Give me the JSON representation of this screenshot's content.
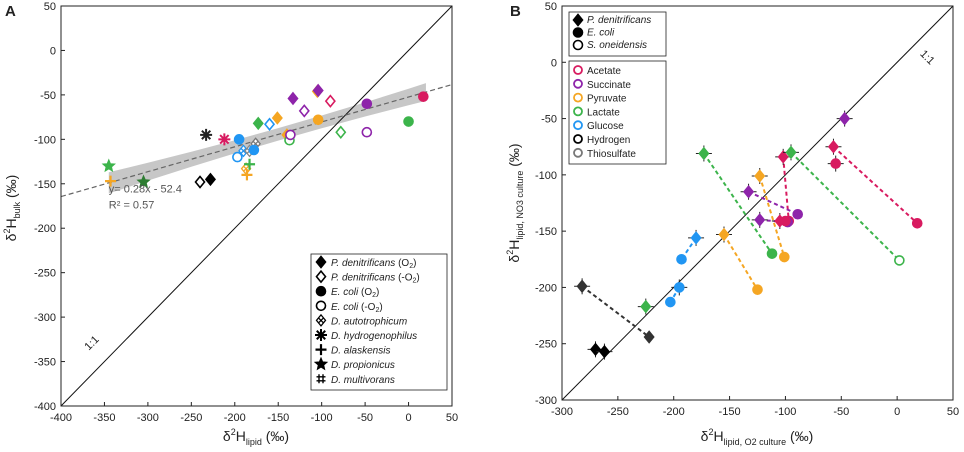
{
  "chart_data": [
    {
      "panel": "A",
      "type": "scatter",
      "xlabel": "δ²H_lipid (‰)",
      "ylabel": "δ²H_bulk (‰)",
      "xlim": [
        -400,
        50
      ],
      "ylim": [
        -400,
        50
      ],
      "x_ticks": [
        -400,
        -350,
        -300,
        -250,
        -200,
        -150,
        -100,
        -50,
        0,
        50
      ],
      "y_ticks": [
        -400,
        -350,
        -300,
        -250,
        -200,
        -150,
        -100,
        -50,
        0,
        50
      ],
      "one_to_one_label": "1:1",
      "regression": {
        "slope": 0.28,
        "intercept": -52.4,
        "equation": "y= 0.28x - 52.4",
        "r2": "R² = 0.57"
      },
      "points": [
        {
          "x": -345,
          "y": -130,
          "species": "D. propionicus",
          "shape": "star",
          "color": "#3cb44b",
          "filled": true
        },
        {
          "x": -343,
          "y": -147,
          "species": "D. alaskensis",
          "shape": "plus",
          "color": "#f5a623",
          "filled": true
        },
        {
          "x": -305,
          "y": -148,
          "species": "D. propionicus",
          "shape": "star",
          "color": "#2e7d32",
          "filled": true
        },
        {
          "x": -240,
          "y": -148,
          "species": "P. denitrificans (-O2)",
          "shape": "diamond",
          "color": "#000000",
          "filled": false
        },
        {
          "x": -228,
          "y": -145,
          "species": "P. denitrificans (O2)",
          "shape": "diamond",
          "color": "#000000",
          "filled": true
        },
        {
          "x": -233,
          "y": -95,
          "species": "D. hydrogenophilus",
          "shape": "asterisk",
          "color": "#222222",
          "filled": true
        },
        {
          "x": -212,
          "y": -100,
          "species": "D. hydrogenophilus",
          "shape": "asterisk",
          "color": "#d81b60",
          "filled": true
        },
        {
          "x": -195,
          "y": -100,
          "species": "E. coli (O2)",
          "shape": "circle",
          "color": "#2196f3",
          "filled": true
        },
        {
          "x": -197,
          "y": -120,
          "species": "E. coli (-O2)",
          "shape": "circle",
          "color": "#2196f3",
          "filled": false
        },
        {
          "x": -190,
          "y": -113,
          "species": "D. autotrophicum",
          "shape": "xdiamond",
          "color": "#2196f3",
          "filled": false
        },
        {
          "x": -183,
          "y": -113,
          "species": "D. autotrophicum",
          "shape": "xdiamond",
          "color": "#888888",
          "filled": false
        },
        {
          "x": -176,
          "y": -105,
          "species": "D. autotrophicum",
          "shape": "xdiamond",
          "color": "#777777",
          "filled": false
        },
        {
          "x": -187,
          "y": -133,
          "species": "D. autotrophicum",
          "shape": "xdiamond",
          "color": "#f5a623",
          "filled": false
        },
        {
          "x": -186,
          "y": -140,
          "species": "D. alaskensis",
          "shape": "plus",
          "color": "#f5a623",
          "filled": true
        },
        {
          "x": -178,
          "y": -112,
          "species": "E. coli (O2)",
          "shape": "circle",
          "color": "#2196f3",
          "filled": true
        },
        {
          "x": -183,
          "y": -128,
          "species": "D. alaskensis",
          "shape": "plus",
          "color": "#3cb44b",
          "filled": true
        },
        {
          "x": -173,
          "y": -82,
          "species": "P. denitrificans (O2)",
          "shape": "diamond",
          "color": "#3cb44b",
          "filled": true
        },
        {
          "x": -160,
          "y": -83,
          "species": "P. denitrificans (-O2)",
          "shape": "diamond",
          "color": "#2196f3",
          "filled": false
        },
        {
          "x": -140,
          "y": -95,
          "species": "P. denitrificans (O2)",
          "shape": "diamond",
          "color": "#f5a623",
          "filled": true
        },
        {
          "x": -137,
          "y": -101,
          "species": "E. coli (-O2)",
          "shape": "circle",
          "color": "#3cb44b",
          "filled": false
        },
        {
          "x": -151,
          "y": -76,
          "species": "P. denitrificans (O2)",
          "shape": "diamond",
          "color": "#f5a623",
          "filled": true
        },
        {
          "x": -136,
          "y": -95,
          "species": "E. coli (-O2)",
          "shape": "circle",
          "color": "#8e24aa",
          "filled": false
        },
        {
          "x": -133,
          "y": -54,
          "species": "P. denitrificans (O2)",
          "shape": "diamond",
          "color": "#8e24aa",
          "filled": true
        },
        {
          "x": -120,
          "y": -68,
          "species": "P. denitrificans (-O2)",
          "shape": "diamond",
          "color": "#8e24aa",
          "filled": false
        },
        {
          "x": -105,
          "y": -46,
          "species": "P. denitrificans (O2)",
          "shape": "diamond",
          "color": "#f5a623",
          "filled": true
        },
        {
          "x": -104,
          "y": -45,
          "species": "P. denitrificans (O2)",
          "shape": "diamond",
          "color": "#8e24aa",
          "filled": true
        },
        {
          "x": -90,
          "y": -57,
          "species": "P. denitrificans (-O2)",
          "shape": "diamond",
          "color": "#d81b60",
          "filled": false
        },
        {
          "x": -104,
          "y": -78,
          "species": "E. coli (O2)",
          "shape": "circle",
          "color": "#f5a623",
          "filled": true
        },
        {
          "x": -78,
          "y": -92,
          "species": "P. denitrificans (-O2)",
          "shape": "diamond",
          "color": "#3cb44b",
          "filled": false
        },
        {
          "x": -48,
          "y": -60,
          "species": "E. coli (O2)",
          "shape": "circle",
          "color": "#8e24aa",
          "filled": true
        },
        {
          "x": -48,
          "y": -92,
          "species": "E. coli (-O2)",
          "shape": "circle",
          "color": "#8e24aa",
          "filled": false
        },
        {
          "x": 0,
          "y": -80,
          "species": "E. coli (O2)",
          "shape": "circle",
          "color": "#3cb44b",
          "filled": true
        },
        {
          "x": 17,
          "y": -52,
          "species": "E. coli (O2)",
          "shape": "circle",
          "color": "#d81b60",
          "filled": true
        }
      ],
      "legend": {
        "position": "bottom-right",
        "items": [
          {
            "shape": "diamond",
            "filled": true,
            "name": "P. denitrificans",
            "suffix": " (O",
            "sub": "2",
            "close": ")"
          },
          {
            "shape": "diamond",
            "filled": false,
            "name": "P. denitrificans",
            "suffix": " (-O",
            "sub": "2",
            "close": ")"
          },
          {
            "shape": "circle",
            "filled": true,
            "name": "E. coli",
            "suffix": " (O",
            "sub": "2",
            "close": ")"
          },
          {
            "shape": "circle",
            "filled": false,
            "name": "E. coli",
            "suffix": " (-O",
            "sub": "2",
            "close": ")"
          },
          {
            "shape": "xdiamond",
            "filled": false,
            "name": "D. autotrophicum",
            "suffix": "",
            "sub": "",
            "close": ""
          },
          {
            "shape": "asterisk",
            "filled": true,
            "name": "D. hydrogenophilus",
            "suffix": "",
            "sub": "",
            "close": ""
          },
          {
            "shape": "plus",
            "filled": true,
            "name": "D. alaskensis",
            "suffix": "",
            "sub": "",
            "close": ""
          },
          {
            "shape": "star",
            "filled": true,
            "name": "D. propionicus",
            "suffix": "",
            "sub": "",
            "close": ""
          },
          {
            "shape": "hash",
            "filled": true,
            "name": "D. multivorans",
            "suffix": "",
            "sub": "",
            "close": ""
          }
        ]
      }
    },
    {
      "panel": "B",
      "type": "scatter",
      "xlabel": "δ²H_lipid, O2 culture (‰)",
      "ylabel": "δ²H_lipid, NO3 culture (‰)",
      "xlim": [
        -300,
        50
      ],
      "ylim": [
        -300,
        50
      ],
      "x_ticks": [
        -300,
        -250,
        -200,
        -150,
        -100,
        -50,
        0,
        50
      ],
      "y_ticks": [
        -300,
        -250,
        -200,
        -150,
        -100,
        -50,
        0,
        50
      ],
      "one_to_one_label": "1:1",
      "pairs": [
        {
          "x": -225,
          "y": -217,
          "shape": "diamond",
          "color": "#3cb44b"
        },
        {
          "x": -173,
          "y": -81,
          "shape": "diamond",
          "x2": -112,
          "y2": -170,
          "shape2": "circle",
          "color": "#3cb44b"
        },
        {
          "x": -155,
          "y": -153,
          "shape": "diamond",
          "x2": -125,
          "y2": -202,
          "shape2": "circle",
          "color": "#f5a623"
        },
        {
          "x": -123,
          "y": -101,
          "shape": "diamond",
          "x2": -101,
          "y2": -173,
          "shape2": "circle",
          "color": "#f5a623"
        },
        {
          "x": -102,
          "y": -84,
          "shape": "diamond",
          "x2": -97,
          "y2": -141,
          "shape2": "circle",
          "color": "#d81b60"
        },
        {
          "x": -133,
          "y": -115,
          "shape": "diamond",
          "x2": -89,
          "y2": -135,
          "shape2": "circle",
          "color": "#8e24aa"
        },
        {
          "x": -123,
          "y": -140,
          "shape": "diamond",
          "x2": -98,
          "y2": -142,
          "shape2": "circle",
          "color": "#8e24aa"
        },
        {
          "x": -105,
          "y": -141,
          "shape": "diamond",
          "x2": -100,
          "y2": -141,
          "shape2": "circle",
          "color": "#d81b60"
        },
        {
          "x": -57,
          "y": -75,
          "shape": "diamond",
          "x2": 18,
          "y2": -143,
          "shape2": "circle",
          "color": "#d81b60"
        },
        {
          "x": -47,
          "y": -50,
          "shape": "diamond",
          "color": "#8e24aa"
        },
        {
          "x": -95,
          "y": -80,
          "shape": "diamond",
          "x2": 2,
          "y2": -176,
          "shape2": "circle-open",
          "color": "#3cb44b"
        },
        {
          "x": -55,
          "y": -90,
          "shape": "circle",
          "color": "#d81b60"
        },
        {
          "x": -180,
          "y": -156,
          "shape": "diamond",
          "x2": -193,
          "y2": -175,
          "shape2": "circle",
          "color": "#2196f3"
        },
        {
          "x": -195,
          "y": -200,
          "shape": "circle",
          "x2": -203,
          "y2": -213,
          "shape2": "circle",
          "color": "#2196f3"
        },
        {
          "x": -282,
          "y": -199,
          "shape": "diamond",
          "x2": -222,
          "y2": -244,
          "shape2": "diamond",
          "color": "#333333"
        },
        {
          "x": -270,
          "y": -255,
          "shape": "diamond",
          "color": "#000000"
        },
        {
          "x": -262,
          "y": -257,
          "shape": "diamond",
          "color": "#000000"
        }
      ],
      "legend": {
        "position": "top-left",
        "species": [
          {
            "shape": "diamond",
            "filled": true,
            "label": "P. denitrificans"
          },
          {
            "shape": "circle",
            "filled": true,
            "label": "E. coli"
          },
          {
            "shape": "circle",
            "filled": false,
            "label": "S. oneidensis"
          }
        ],
        "substrates": [
          {
            "label": "Acetate",
            "color": "#d81b60"
          },
          {
            "label": "Succinate",
            "color": "#8e24aa"
          },
          {
            "label": "Pyruvate",
            "color": "#f5a623"
          },
          {
            "label": "Lactate",
            "color": "#3cb44b"
          },
          {
            "label": "Glucose",
            "color": "#2196f3"
          },
          {
            "label": "Hydrogen",
            "color": "#000000"
          },
          {
            "label": "Thiosulfate",
            "color": "#777777"
          }
        ]
      }
    }
  ],
  "panel_labels": {
    "a": "A",
    "b": "B"
  },
  "axis_text": {
    "a_x_main": "δ",
    "a_x_sup": "2",
    "a_x_rest": "H",
    "a_x_sub": "lipid",
    "a_x_unit": " (‰)",
    "a_y_main": "δ",
    "a_y_sup": "2",
    "a_y_rest": "H",
    "a_y_sub": "bulk",
    "a_y_unit": " (‰)",
    "b_x_main": "δ",
    "b_x_sup": "2",
    "b_x_rest": "H",
    "b_x_sub": "lipid, O2 culture",
    "b_x_unit": " (‰)",
    "b_y_main": "δ",
    "b_y_sup": "2",
    "b_y_rest": "H",
    "b_y_sub": "lipid, NO3 culture",
    "b_y_unit": " (‰)"
  }
}
